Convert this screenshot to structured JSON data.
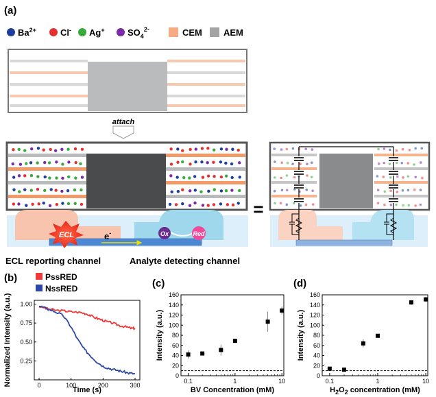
{
  "panel_a": {
    "label": "(a)",
    "legend": [
      {
        "symbol_color": "#1f3f9c",
        "text": "Ba",
        "sup": "2+"
      },
      {
        "symbol_color": "#e53030",
        "text": "Cl",
        "sup": "-"
      },
      {
        "symbol_color": "#3aaa3a",
        "text": "Ag",
        "sup": "+"
      },
      {
        "symbol_color": "#7b2aa8",
        "text": "SO",
        "sub": "4",
        "sup": "2-"
      },
      {
        "swatch_color": "#f6ab84",
        "text": "CEM"
      },
      {
        "swatch_color": "#a4a4a4",
        "text": "AEM"
      }
    ],
    "attach_label": "attach",
    "ecl_tag": "ECL",
    "electron_label": "e",
    "electron_sup": "-",
    "ox_label": "Ox",
    "red_label": "Red",
    "equals": "=",
    "left_channel_label": "ECL reporting channel",
    "right_channel_label": "Analyte detecting channel"
  },
  "chart_data": [
    {
      "panel": "(b)",
      "type": "line",
      "xlabel": "Time (s)",
      "ylabel": "Normalized Intensity (a.u.)",
      "xlim": [
        -15,
        315
      ],
      "ylim": [
        0.0,
        1.05
      ],
      "xticks": [
        0,
        100,
        200,
        300
      ],
      "yticks": [
        0.25,
        0.5,
        0.75,
        1.0
      ],
      "ytick_labels": [
        "0.25",
        "0.50",
        "0.75",
        "1.00"
      ],
      "series": [
        {
          "name": "PssRED",
          "color": "#f03a3a",
          "x": [
            0,
            25,
            50,
            80,
            100,
            130,
            150,
            170,
            190,
            210,
            230,
            250,
            270,
            290,
            300
          ],
          "y": [
            0.97,
            0.94,
            0.92,
            0.91,
            0.9,
            0.89,
            0.87,
            0.83,
            0.8,
            0.77,
            0.75,
            0.72,
            0.7,
            0.68,
            0.68
          ]
        },
        {
          "name": "NssRED",
          "color": "#2c47a6",
          "x": [
            0,
            25,
            50,
            75,
            100,
            120,
            140,
            160,
            180,
            200,
            220,
            240,
            260,
            280,
            300
          ],
          "y": [
            0.97,
            0.94,
            0.9,
            0.85,
            0.7,
            0.54,
            0.41,
            0.32,
            0.24,
            0.18,
            0.15,
            0.13,
            0.11,
            0.09,
            0.08
          ]
        }
      ]
    },
    {
      "panel": "(c)",
      "type": "scatter",
      "xlabel": "BV Concentration (mM)",
      "ylabel": "Intensity (a.u.)",
      "xscale": "log",
      "xlim": [
        0.07,
        11
      ],
      "ylim": [
        0,
        160
      ],
      "xticks": [
        0.1,
        1,
        10
      ],
      "xtick_labels": [
        "0.1",
        "1",
        "10"
      ],
      "yticks": [
        0,
        20,
        40,
        60,
        80,
        100,
        120,
        140,
        160
      ],
      "baseline_y": 10,
      "points": [
        {
          "x": 0.1,
          "y": 42,
          "err": 8
        },
        {
          "x": 0.2,
          "y": 44,
          "err": 3
        },
        {
          "x": 0.5,
          "y": 51,
          "err": 11
        },
        {
          "x": 1,
          "y": 69,
          "err": 3
        },
        {
          "x": 5,
          "y": 107,
          "err": 20
        },
        {
          "x": 10,
          "y": 129,
          "err": 8
        }
      ]
    },
    {
      "panel": "(d)",
      "type": "scatter",
      "xlabel_parts": [
        "H",
        "2",
        "O",
        "2",
        " concentration (mM)"
      ],
      "ylabel": "Intensity (a.u.)",
      "xscale": "log",
      "xlim": [
        0.07,
        11
      ],
      "ylim": [
        0,
        160
      ],
      "xticks": [
        0.1,
        1,
        10
      ],
      "xtick_labels": [
        "0.1",
        "1",
        "10"
      ],
      "yticks": [
        0,
        20,
        40,
        60,
        80,
        100,
        120,
        140,
        160
      ],
      "baseline_y": 10,
      "points": [
        {
          "x": 0.1,
          "y": 14,
          "err": 3
        },
        {
          "x": 0.2,
          "y": 12,
          "err": 2
        },
        {
          "x": 0.5,
          "y": 64,
          "err": 8
        },
        {
          "x": 1,
          "y": 79,
          "err": 3
        },
        {
          "x": 5,
          "y": 145,
          "err": 5
        },
        {
          "x": 10,
          "y": 151,
          "err": 5
        }
      ]
    }
  ]
}
